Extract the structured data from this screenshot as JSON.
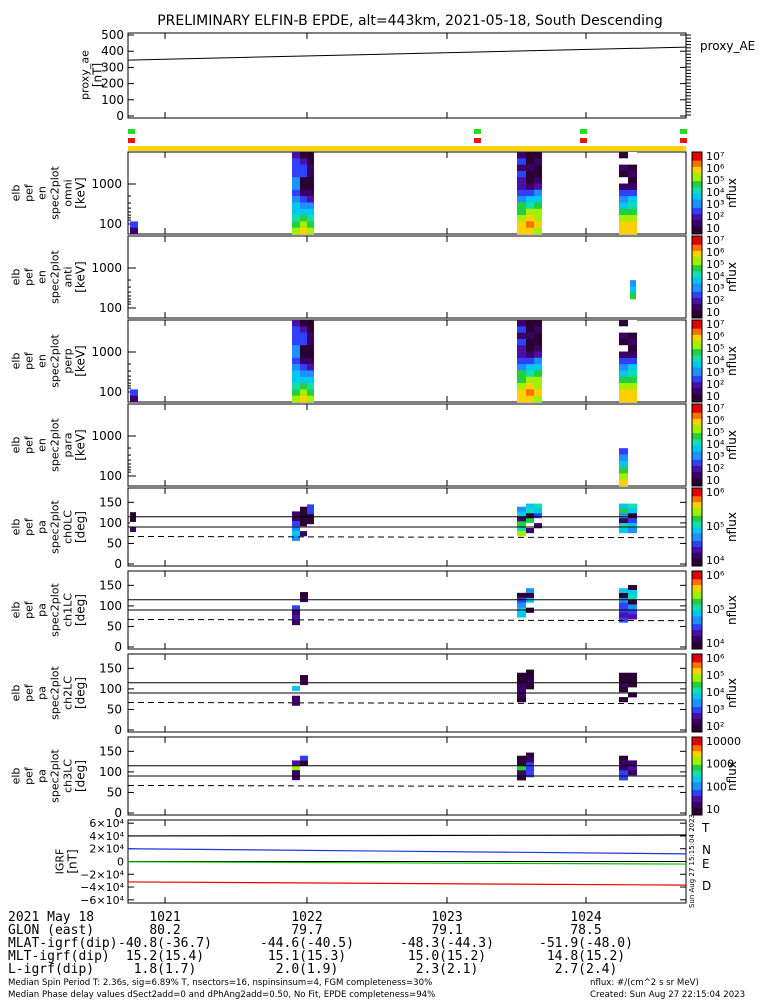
{
  "header": {
    "title": "PRELIMINARY ELFIN-B EPDE, alt=443km, 2021-05-18, South Descending"
  },
  "chart_data": {
    "type": "heatmap",
    "x_tick_times": [
      "1021",
      "1022",
      "1023",
      "1024"
    ],
    "proxy_ae": {
      "type": "line",
      "ylabel": [
        "proxy_ae",
        "[nT]"
      ],
      "legend": "proxy_AE",
      "ylim": [
        0,
        500
      ],
      "yticks": [
        "0",
        "100",
        "200",
        "300",
        "400",
        "500"
      ],
      "series": [
        {
          "name": "proxy_AE",
          "x": [
            0,
            1
          ],
          "y": [
            345,
            425
          ]
        }
      ]
    },
    "status_bar": {
      "green_marks": [
        0.0,
        0.62,
        0.81,
        1.0
      ],
      "red_marks": [
        0.0,
        0.62,
        0.81,
        1.0
      ]
    },
    "energy_panels": [
      {
        "ylabel": [
          "elb",
          "pef",
          "en",
          "spec2plot",
          "omni",
          "[keV]"
        ],
        "yticks": [
          "100",
          "1000"
        ],
        "colorbar_label": "nflux",
        "colorbar_ticks": [
          "10",
          "10²",
          "10³",
          "10⁴",
          "10⁵",
          "10⁶",
          "10⁷"
        ]
      },
      {
        "ylabel": [
          "elb",
          "pef",
          "en",
          "spec2plot",
          "anti",
          "[keV]"
        ],
        "yticks": [
          "100",
          "1000"
        ],
        "colorbar_label": "nflux",
        "colorbar_ticks": [
          "10",
          "10²",
          "10³",
          "10⁴",
          "10⁵",
          "10⁶",
          "10⁷"
        ]
      },
      {
        "ylabel": [
          "elb",
          "pef",
          "en",
          "spec2plot",
          "perp",
          "[keV]"
        ],
        "yticks": [
          "100",
          "1000"
        ],
        "colorbar_label": "nflux",
        "colorbar_ticks": [
          "10",
          "10²",
          "10³",
          "10⁴",
          "10⁵",
          "10⁶",
          "10⁷"
        ]
      },
      {
        "ylabel": [
          "elb",
          "pef",
          "en",
          "spec2plot",
          "para",
          "[keV]"
        ],
        "yticks": [
          "100",
          "1000"
        ],
        "colorbar_label": "nflux",
        "colorbar_ticks": [
          "10",
          "10²",
          "10³",
          "10⁴",
          "10⁵",
          "10⁶",
          "10⁷"
        ]
      }
    ],
    "pa_panels": [
      {
        "ylabel": [
          "elb",
          "pef",
          "pa",
          "spec2plot",
          "ch0LC",
          "[deg]"
        ],
        "yticks": [
          "0",
          "50",
          "100",
          "150"
        ],
        "colorbar_label": "nflux",
        "colorbar_ticks": [
          "10⁴",
          "10⁵",
          "10⁶"
        ]
      },
      {
        "ylabel": [
          "elb",
          "pef",
          "pa",
          "spec2plot",
          "ch1LC",
          "[deg]"
        ],
        "yticks": [
          "0",
          "50",
          "100",
          "150"
        ],
        "colorbar_label": "nflux",
        "colorbar_ticks": [
          "10⁴",
          "10⁵",
          "10⁶"
        ]
      },
      {
        "ylabel": [
          "elb",
          "pef",
          "pa",
          "spec2plot",
          "ch2LC",
          "[deg]"
        ],
        "yticks": [
          "0",
          "50",
          "100",
          "150"
        ],
        "colorbar_label": "nflux",
        "colorbar_ticks": [
          "10²",
          "10³",
          "10⁴",
          "10⁵",
          "10⁶"
        ]
      },
      {
        "ylabel": [
          "elb",
          "pef",
          "pa",
          "spec2plot",
          "ch3LC",
          "[deg]"
        ],
        "yticks": [
          "0",
          "50",
          "100",
          "150"
        ],
        "colorbar_label": "nflux",
        "colorbar_ticks": [
          "10",
          "100",
          "1000",
          "10000"
        ]
      }
    ],
    "bfield": {
      "type": "line",
      "ylabel": [
        "IGRF",
        "[nT]"
      ],
      "yticks": [
        "6×10⁴",
        "4×10⁴",
        "2×10⁴",
        "0",
        "−2×10⁴",
        "−4×10⁴",
        "−6×10⁴"
      ],
      "ylim": [
        -65000,
        65000
      ],
      "series": [
        {
          "name": "T",
          "color": "#000000",
          "y": [
            40000,
            41500
          ]
        },
        {
          "name": "N",
          "color": "#2233dd",
          "y": [
            20000,
            12000
          ]
        },
        {
          "name": "E",
          "color": "#00cc00",
          "y": [
            -500,
            -4000
          ]
        },
        {
          "name": "D",
          "color": "#ee0000",
          "y": [
            -32000,
            -37000
          ]
        }
      ]
    }
  },
  "footer": {
    "date": "2021 May 18",
    "rows": [
      {
        "label": "GLON (east)",
        "values": [
          "80.2",
          "79.7",
          "79.1",
          "78.5"
        ]
      },
      {
        "label": "MLAT-igrf(dip)",
        "values": [
          "-40.8(-36.7)",
          "-44.6(-40.5)",
          "-48.3(-44.3)",
          "-51.9(-48.0)"
        ]
      },
      {
        "label": "MLT-igrf(dip)",
        "values": [
          "15.2(15.4)",
          "15.1(15.3)",
          "15.0(15.2)",
          "14.8(15.2)"
        ]
      },
      {
        "label": "L-igrf(dip)",
        "values": [
          "1.8(1.7)",
          "2.0(1.9)",
          "2.3(2.1)",
          "2.7(2.4)"
        ]
      }
    ],
    "note1": "Median Spin Period T: 2.36s, sig=6.89% T, nsectors=16, nspinsinsum=4, FGM completeness=30%",
    "note2": "Median Phase delay values dSect2add=0 and dPhAng2add=0.50, No Fit, EPDE completeness=94%",
    "units": "nflux: #/(cm^2 s sr MeV)",
    "created": "Created: Sun Aug 27 22:15:04 2023",
    "side_stamp": "Sun Aug 27 15:15:04 2023"
  }
}
